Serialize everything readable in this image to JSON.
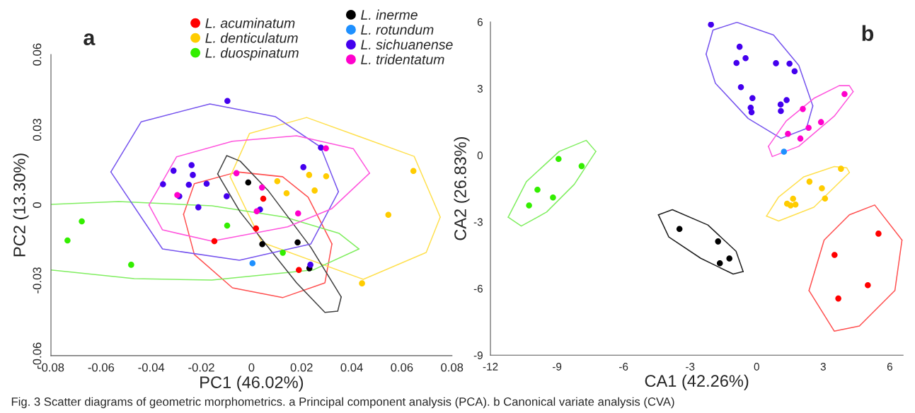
{
  "chart_data": [
    {
      "type": "scatter",
      "title": "a",
      "xlabel": "PC1 (46.02%)",
      "ylabel": "PC2 (13.30%)",
      "xlim": [
        -0.08,
        0.08
      ],
      "ylim": [
        -0.06,
        0.06
      ],
      "xticks": [
        -0.08,
        -0.06,
        -0.04,
        -0.02,
        0,
        0.02,
        0.04,
        0.06,
        0.08
      ],
      "yticks": [
        -0.06,
        -0.03,
        0,
        0.03,
        0.06
      ],
      "grid": false,
      "legend": "top",
      "marker": "circle",
      "annotations": [
        "Fig. 3 Scatter diagrams of geometric morphometrics. a Principal component analysis (PCA). b Canonical variate analysis (CVA)"
      ],
      "series": [
        {
          "name": "L. acuminatum",
          "color": "#ff0000",
          "x": [
            0.0047,
            0.0018,
            -0.0148,
            0.0189
          ],
          "values": [
            0.0025,
            -0.0093,
            -0.0144,
            -0.0259
          ]
        },
        {
          "name": "L. denticulatum",
          "color": "#ffcc00",
          "x": [
            0.0103,
            0.014,
            0.023,
            0.0298,
            0.0252,
            0.0646,
            0.0546,
            0.0441
          ],
          "values": [
            0.0095,
            0.0047,
            0.012,
            0.0115,
            0.0058,
            0.0136,
            -0.0039,
            -0.0312
          ]
        },
        {
          "name": "L. duospinatum",
          "color": "#33ee00",
          "x": [
            -0.0677,
            -0.0734,
            -0.048,
            -0.0097,
            0.0125
          ],
          "values": [
            -0.0065,
            -0.0141,
            -0.0238,
            -0.0082,
            -0.019
          ]
        },
        {
          "name": "L. inerme",
          "color": "#000000",
          "x": [
            -0.0013,
            0.0043,
            0.0184,
            0.0231
          ],
          "values": [
            0.009,
            -0.0156,
            -0.0149,
            -0.0252
          ]
        },
        {
          "name": "L. rotundum",
          "color": "#1e90ff",
          "x": [
            0.0004
          ],
          "values": [
            -0.0232
          ]
        },
        {
          "name": "L. sichuanense",
          "color": "#4400ee",
          "x": [
            -0.0096,
            -0.0311,
            -0.0239,
            -0.0234,
            -0.0353,
            -0.025,
            -0.0179,
            -0.0288,
            -0.0212,
            -0.0099,
            0.0277,
            0.0207,
            0.0034,
            0.0235
          ],
          "values": [
            0.0415,
            0.0137,
            0.0159,
            0.012,
            0.0083,
            0.0081,
            0.0085,
            0.0035,
            -0.0009,
            0.0035,
            0.0229,
            0.0151,
            -0.0018,
            -0.0238
          ]
        },
        {
          "name": "L. tridentatum",
          "color": "#ff00cc",
          "x": [
            -0.0296,
            0.0297,
            -0.006,
            0.0042,
            0.0021,
            0.0186
          ],
          "values": [
            0.004,
            0.0226,
            0.0127,
            0.007,
            -0.0025,
            -0.0033
          ]
        },
        {
          "type": "line",
          "marker": "none",
          "color": "#ff5050",
          "x": [
            -0.0271,
            -0.0228,
            -0.0056,
            0.0124,
            0.0226,
            0.0321
          ],
          "values": [
            -0.0037,
            0.0085,
            0.0132,
            0.0113,
            0.0031,
            -0.0155
          ]
        },
        {
          "type": "line",
          "marker": "none",
          "color": "#ff5050",
          "x": [
            -0.0271,
            -0.0228,
            -0.0076,
            0.0124,
            0.0293,
            0.0321
          ],
          "values": [
            -0.0037,
            -0.0197,
            -0.033,
            -0.0369,
            -0.031,
            -0.0155
          ]
        },
        {
          "type": "line",
          "marker": "none",
          "color": "#ffe050",
          "x": [
            -0.0085,
            -0.0008,
            0.022,
            0.0649,
            0.0753
          ],
          "values": [
            0.0113,
            0.0285,
            0.0349,
            0.0194,
            -0.0048
          ]
        },
        {
          "type": "line",
          "marker": "none",
          "color": "#ffe050",
          "x": [
            -0.0085,
            0.0042,
            0.0446,
            0.0697,
            0.0753
          ],
          "values": [
            0.0113,
            -0.0149,
            -0.0296,
            -0.0189,
            -0.0048
          ]
        },
        {
          "type": "line",
          "marker": "none",
          "color": "#80ee60",
          "x": [
            -0.08,
            -0.053,
            -0.0158,
            0.0133,
            0.035,
            0.0429
          ],
          "values": [
            0.0003,
            0.0014,
            -0.0003,
            -0.0048,
            -0.0113,
            -0.0175
          ]
        },
        {
          "type": "line",
          "marker": "none",
          "color": "#80ee60",
          "x": [
            -0.08,
            -0.0468,
            -0.0158,
            0.0245,
            0.0429
          ],
          "values": [
            -0.0259,
            -0.0293,
            -0.0299,
            -0.0259,
            -0.0175
          ]
        },
        {
          "type": "line",
          "marker": "none",
          "color": "#404040",
          "x": [
            -0.0135,
            -0.0099,
            -0.0045,
            0.0068,
            0.0237,
            0.0358
          ],
          "values": [
            0.0124,
            0.0197,
            0.0175,
            0.0056,
            -0.0169,
            -0.0366
          ]
        },
        {
          "type": "line",
          "marker": "none",
          "color": "#404040",
          "x": [
            -0.0135,
            -0.0045,
            0.018,
            0.0293,
            0.0344,
            0.0358
          ],
          "values": [
            0.0124,
            -0.0028,
            -0.031,
            -0.0428,
            -0.0423,
            -0.0366
          ]
        },
        {
          "type": "line",
          "marker": "none",
          "color": "#7755ee",
          "x": [
            -0.0561,
            -0.044,
            -0.0166,
            0.0096,
            0.0276,
            0.0347
          ],
          "values": [
            0.0132,
            0.0332,
            0.0403,
            0.0352,
            0.0231,
            0.0053
          ]
        },
        {
          "type": "line",
          "marker": "none",
          "color": "#7755ee",
          "x": [
            -0.0561,
            -0.0355,
            -0.0048,
            0.0237,
            0.0347
          ],
          "values": [
            0.0132,
            -0.0175,
            -0.022,
            -0.0155,
            0.0053
          ]
        },
        {
          "type": "line",
          "marker": "none",
          "color": "#ff55dd",
          "x": [
            -0.0409,
            -0.0299,
            -0.0076,
            0.018,
            0.0406,
            0.0471
          ],
          "values": [
            0.0,
            0.0192,
            0.0254,
            0.0276,
            0.0225,
            0.0127
          ]
        },
        {
          "type": "line",
          "marker": "none",
          "color": "#ff55dd",
          "x": [
            -0.0409,
            -0.0355,
            -0.0158,
            0.0144,
            0.0321,
            0.0471
          ],
          "values": [
            0.0,
            -0.0099,
            -0.0144,
            -0.0087,
            -0.0014,
            0.0127
          ]
        }
      ]
    },
    {
      "type": "scatter",
      "title": "b",
      "xlabel": "CA1 (42.26%)",
      "ylabel": "CA2 (26.83%)",
      "xlim": [
        -12,
        6.6
      ],
      "ylim": [
        -9,
        6
      ],
      "xticks": [
        -12,
        -9,
        -6,
        -3,
        0,
        3,
        6
      ],
      "yticks": [
        -9,
        -6,
        -3,
        0,
        3,
        6
      ],
      "grid": false,
      "marker": "circle",
      "series": [
        {
          "color": "#ff0000",
          "x": [
            5.49,
            3.51,
            5.01,
            3.68
          ],
          "values": [
            -3.53,
            -4.49,
            -5.85,
            -6.45
          ]
        },
        {
          "color": "#ffcc00",
          "x": [
            3.8,
            2.38,
            2.94,
            3.08,
            1.64,
            1.37,
            1.53,
            1.75
          ],
          "values": [
            -0.61,
            -1.19,
            -1.49,
            -1.95,
            -1.96,
            -2.18,
            -2.26,
            -2.22
          ]
        },
        {
          "color": "#33ee00",
          "x": [
            -8.93,
            -7.89,
            -9.88,
            -9.18,
            -10.26
          ],
          "values": [
            -0.17,
            -0.49,
            -1.55,
            -1.9,
            -2.26
          ]
        },
        {
          "color": "#000000",
          "x": [
            -3.48,
            -1.74,
            -1.23,
            -1.66
          ],
          "values": [
            -3.32,
            -3.88,
            -4.65,
            -4.86
          ]
        },
        {
          "color": "#1e90ff",
          "x": [
            1.23
          ],
          "values": [
            0.16
          ]
        },
        {
          "color": "#4400ee",
          "x": [
            -2.06,
            -0.77,
            -0.91,
            -0.5,
            0.87,
            1.48,
            1.71,
            -0.71,
            -0.19,
            -0.27,
            -0.23,
            1.35,
            1.08,
            1.09
          ],
          "values": [
            5.88,
            4.88,
            4.15,
            4.37,
            4.14,
            4.12,
            3.78,
            3.06,
            2.57,
            2.14,
            1.93,
            2.48,
            2.28,
            1.99
          ]
        },
        {
          "color": "#ff00cc",
          "x": [
            3.96,
            2.08,
            2.9,
            2.34,
            1.41,
            1.97
          ],
          "values": [
            2.75,
            2.08,
            1.49,
            1.23,
            0.96,
            0.75
          ]
        },
        {
          "type": "line",
          "marker": "none",
          "color": "#ff5050",
          "x": [
            2.36,
            3.04,
            4.18,
            5.32,
            6.55
          ],
          "values": [
            -6.09,
            -3.82,
            -2.68,
            -2.24,
            -3.82
          ]
        },
        {
          "type": "line",
          "marker": "none",
          "color": "#ff5050",
          "x": [
            2.36,
            3.5,
            4.63,
            6.23,
            6.55
          ],
          "values": [
            -6.09,
            -7.92,
            -7.69,
            -6.09,
            -3.82
          ]
        },
        {
          "type": "line",
          "marker": "none",
          "color": "#ffe050",
          "x": [
            0.44,
            0.99,
            2.13,
            3.5,
            4.06,
            4.18
          ],
          "values": [
            -2.74,
            -1.88,
            -0.97,
            -0.51,
            -0.57,
            -0.78
          ]
        },
        {
          "type": "line",
          "marker": "none",
          "color": "#ffe050",
          "x": [
            0.44,
            0.99,
            2.58,
            4.18
          ],
          "values": [
            -2.74,
            -2.96,
            -2.34,
            -0.78
          ]
        },
        {
          "type": "line",
          "marker": "none",
          "color": "#80ee60",
          "x": [
            -11.2,
            -10.38,
            -8.9,
            -7.68,
            -7.25
          ],
          "values": [
            -2.79,
            -1.19,
            0.17,
            0.67,
            0.17
          ]
        },
        {
          "type": "line",
          "marker": "none",
          "color": "#80ee60",
          "x": [
            -11.2,
            -10.61,
            -9.47,
            -8.22,
            -7.25
          ],
          "values": [
            -2.79,
            -3.19,
            -2.56,
            -1.31,
            0.17
          ]
        },
        {
          "type": "line",
          "marker": "none",
          "color": "#202020",
          "x": [
            -4.43,
            -3.8,
            -2.2,
            -0.93,
            -0.61
          ],
          "values": [
            -2.68,
            -2.45,
            -3.14,
            -4.32,
            -5.24
          ]
        },
        {
          "type": "line",
          "marker": "none",
          "color": "#202020",
          "x": [
            -4.43,
            -3.96,
            -2.52,
            -1.06,
            -0.61
          ],
          "values": [
            -2.68,
            -3.68,
            -4.64,
            -5.35,
            -5.24
          ]
        },
        {
          "type": "line",
          "marker": "none",
          "color": "#7755ee",
          "x": [
            -2.28,
            -1.97,
            -0.89,
            0.76,
            1.9,
            2.53
          ],
          "values": [
            4.55,
            5.63,
            5.98,
            5.41,
            4.04,
            2.22
          ]
        },
        {
          "type": "line",
          "marker": "none",
          "color": "#7755ee",
          "x": [
            -2.28,
            -1.86,
            -0.38,
            1.1,
            2.24,
            2.53
          ],
          "values": [
            4.55,
            3.24,
            1.65,
            0.76,
            1.2,
            2.22
          ]
        },
        {
          "type": "line",
          "marker": "none",
          "color": "#ff55dd",
          "x": [
            0.53,
            1.33,
            2.58,
            3.72,
            4.18,
            4.35
          ],
          "values": [
            0.4,
            1.54,
            2.56,
            3.13,
            3.13,
            2.86
          ]
        },
        {
          "type": "line",
          "marker": "none",
          "color": "#ff55dd",
          "x": [
            0.53,
            0.7,
            1.9,
            3.5,
            4.35
          ],
          "values": [
            0.4,
            -0.06,
            0.4,
            1.76,
            2.86
          ]
        }
      ]
    }
  ]
}
